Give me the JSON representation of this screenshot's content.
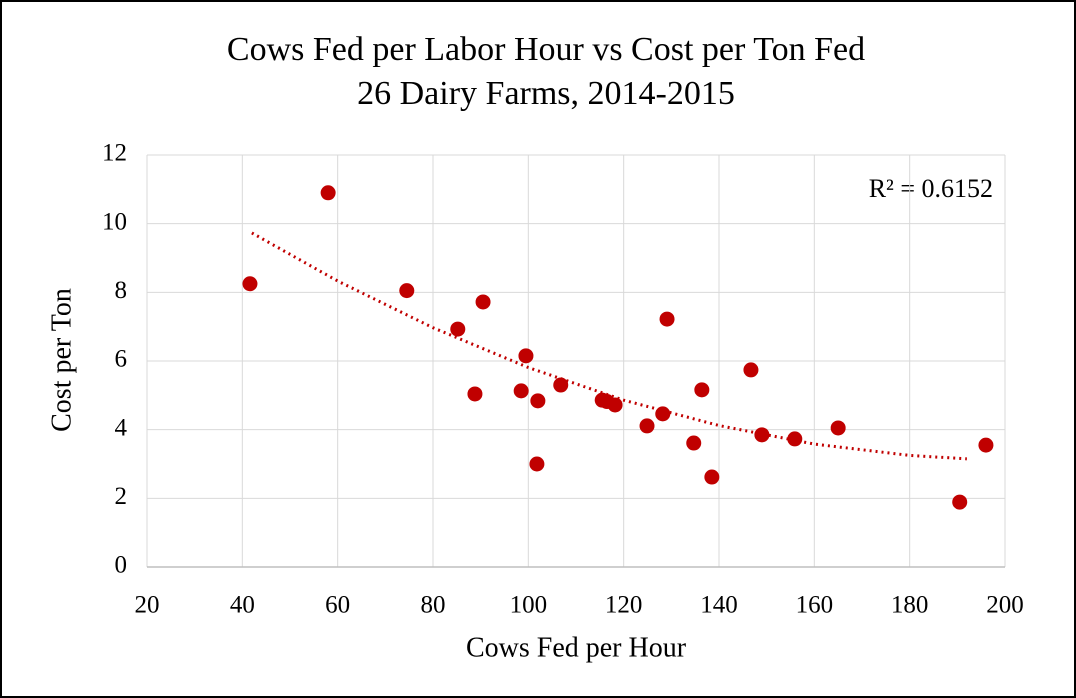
{
  "chart_data": {
    "type": "scatter",
    "title": "Cows Fed per Labor Hour vs Cost per Ton Fed",
    "subtitle": "26 Dairy Farms, 2014-2015",
    "x_label": "Cows Fed per Hour",
    "y_label": "Cost per Ton",
    "annotation": "R² = 0.6152",
    "color": "#c00000",
    "x": [
      41.6,
      58,
      74.5,
      85.2,
      90.5,
      88.8,
      99.5,
      98.5,
      102,
      101.8,
      106.8,
      115.5,
      116.5,
      118.2,
      124.9,
      128.2,
      129.1,
      134.7,
      136.4,
      138.5,
      146.7,
      149,
      155.9,
      165,
      190.5,
      196
    ],
    "values": [
      8.25,
      10.9,
      8.05,
      6.93,
      7.72,
      5.04,
      6.15,
      5.13,
      4.84,
      3.0,
      5.3,
      4.86,
      4.82,
      4.72,
      4.11,
      4.46,
      7.22,
      3.61,
      5.16,
      2.62,
      5.74,
      3.85,
      3.73,
      4.05,
      1.89,
      3.55
    ],
    "trendline": {
      "x": [
        42,
        60,
        80,
        100,
        120,
        140,
        160,
        180,
        192
      ],
      "values": [
        9.73,
        8.33,
        6.97,
        5.81,
        4.86,
        4.12,
        3.58,
        3.25,
        3.15
      ]
    },
    "xlim": [
      20,
      200
    ],
    "xticks": [
      20,
      40,
      60,
      80,
      100,
      120,
      140,
      160,
      180,
      200
    ],
    "ylim": [
      0,
      12
    ],
    "yticks": [
      0,
      2,
      4,
      6,
      8,
      10,
      12
    ],
    "grid": true
  }
}
